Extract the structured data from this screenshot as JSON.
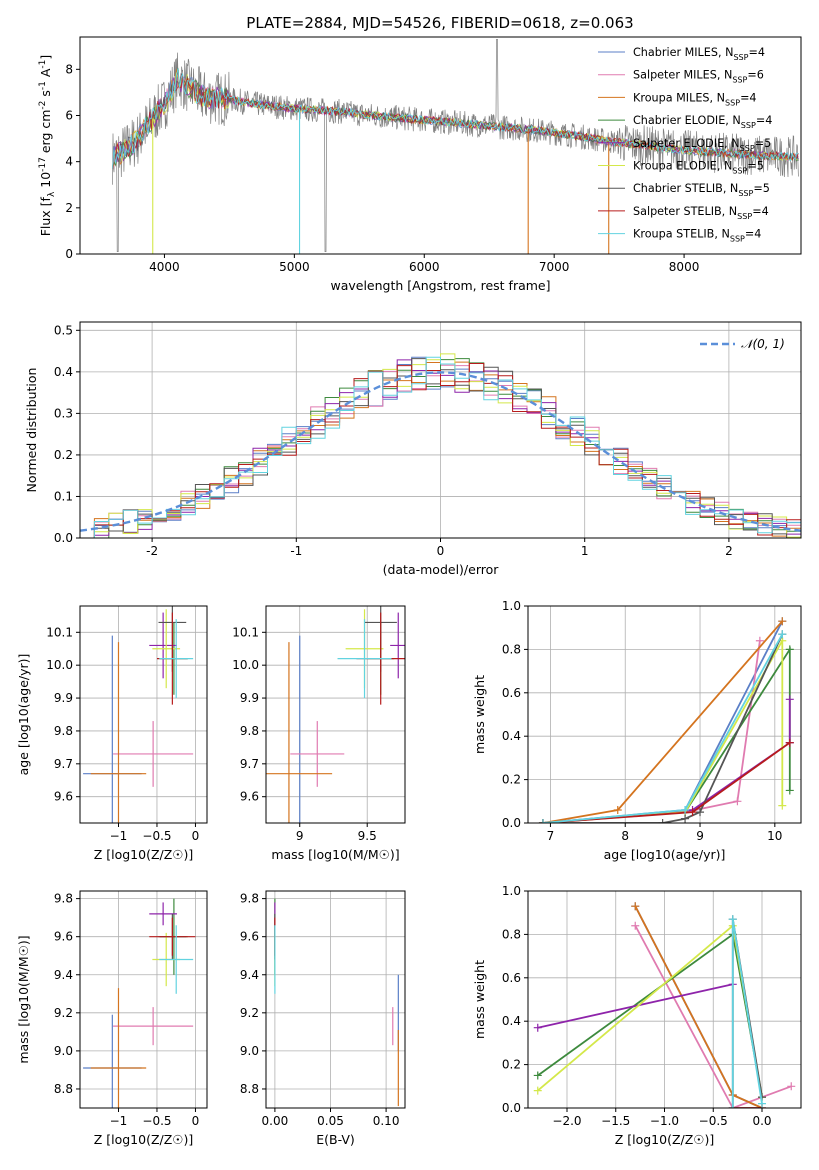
{
  "figure": {
    "title": "PLATE=2884, MJD=54526, FIBERID=0618, z=0.063"
  },
  "colors": {
    "chabrier_miles": "#5b7fc7",
    "salpeter_miles": "#e07bb0",
    "kroupa_miles": "#d4741f",
    "chabrier_elodie": "#3d8a3d",
    "salpeter_elodie": "#8e24aa",
    "kroupa_elodie": "#d4e84a",
    "chabrier_stelib": "#555555",
    "salpeter_stelib": "#b71c1c",
    "kroupa_stelib": "#62d3e0",
    "data_gray": "#7f7f7f",
    "normal_curve": "#5b8fd9"
  },
  "chart_data": [
    {
      "id": "spectrum",
      "type": "line",
      "xlabel": "wavelength [Angstrom, rest frame]",
      "ylabel": "Flux [f_λ 10^-17 erg cm^-2 s^-1 A^-1]",
      "xlim": [
        3350,
        8900
      ],
      "ylim": [
        0,
        9.4
      ],
      "xticks": [
        4000,
        5000,
        6000,
        7000,
        8000
      ],
      "yticks": [
        0,
        2,
        4,
        6,
        8
      ],
      "grid": false,
      "legend_position": "top-right",
      "legend": [
        "Chabrier MILES, N_SSP=4",
        "Salpeter MILES, N_SSP=6",
        "Kroupa MILES, N_SSP=4",
        "Chabrier ELODIE, N_SSP=4",
        "Salpeter ELODIE, N_SSP=5",
        "Kroupa ELODIE, N_SSP=5",
        "Chabrier STELIB, N_SSP=5",
        "Salpeter STELIB, N_SSP=4",
        "Kroupa STELIB, N_SSP=4"
      ],
      "model_trend": {
        "x": [
          3600,
          3700,
          3800,
          3900,
          4000,
          4100,
          4200,
          4300,
          4500,
          4700,
          5000,
          5300,
          5600,
          6000,
          6400,
          6800,
          7200,
          7400,
          8000,
          8500,
          8900
        ],
        "y": [
          4.2,
          4.5,
          5.0,
          5.8,
          6.5,
          7.6,
          7.2,
          6.8,
          6.7,
          6.5,
          6.3,
          6.2,
          6.0,
          5.8,
          5.6,
          5.4,
          5.1,
          4.9,
          4.5,
          4.3,
          4.2
        ]
      }
    },
    {
      "id": "residual_histogram",
      "type": "bar",
      "xlabel": "(data-model)/error",
      "ylabel": "Normed distribution",
      "xlim": [
        -2.5,
        2.5
      ],
      "ylim": [
        0,
        0.52
      ],
      "xticks": [
        -2,
        -1,
        0,
        1,
        2
      ],
      "yticks": [
        0.0,
        0.1,
        0.2,
        0.3,
        0.4,
        0.5
      ],
      "grid": true,
      "legend_position": "top-right",
      "legend": [
        "𝒩(0, 1)"
      ],
      "bin_width": 0.1,
      "bins_from": -2.5,
      "base_values": [
        0.025,
        0.028,
        0.032,
        0.036,
        0.041,
        0.046,
        0.052,
        0.058,
        0.064,
        0.071,
        0.079,
        0.087,
        0.096,
        0.105,
        0.115,
        0.125,
        0.136,
        0.147,
        0.158,
        0.171,
        0.184,
        0.197,
        0.21,
        0.224,
        0.238,
        0.252,
        0.266,
        0.28,
        0.294,
        0.308,
        0.321,
        0.334,
        0.346,
        0.357,
        0.367,
        0.376,
        0.384,
        0.391,
        0.396,
        0.399,
        0.4,
        0.399,
        0.396,
        0.391,
        0.384,
        0.376,
        0.367,
        0.357,
        0.346,
        0.334,
        0.321,
        0.308,
        0.294,
        0.28,
        0.266,
        0.252,
        0.238,
        0.224,
        0.21,
        0.197,
        0.184,
        0.171,
        0.158,
        0.147,
        0.136,
        0.125,
        0.115,
        0.105,
        0.096,
        0.087,
        0.079,
        0.071,
        0.064,
        0.058,
        0.052,
        0.046,
        0.041,
        0.036,
        0.032,
        0.028,
        0.025,
        0.022,
        0.02,
        0.018,
        0.016,
        0.014,
        0.013,
        0.012,
        0.011,
        0.01,
        0.009,
        0.008,
        0.007,
        0.006,
        0.005,
        0.004,
        0.004,
        0.003,
        0.003,
        0.002
      ],
      "normal_curve": {
        "mean": 0,
        "sigma": 1
      }
    },
    {
      "id": "age_vs_metallicity",
      "type": "scatter",
      "xlabel": "Z [log10(Z/Z☉)]",
      "ylabel": "age  [log10(age/yr)]",
      "xlim": [
        -1.5,
        0.15
      ],
      "ylim": [
        9.52,
        10.18
      ],
      "xticks": [
        -1,
        -0.5,
        0
      ],
      "xticklabels": [
        "−1",
        "−0.5",
        "0"
      ],
      "yticks": [
        9.6,
        9.7,
        9.8,
        9.9,
        10.0,
        10.1
      ],
      "grid": true,
      "points": [
        {
          "model": "chabrier_miles",
          "x": -1.08,
          "y": 9.67,
          "xerr": 0.38,
          "yerr": 0.42
        },
        {
          "model": "salpeter_miles",
          "x": -0.55,
          "y": 9.73,
          "xerr": 0.52,
          "yerr": 0.1
        },
        {
          "model": "kroupa_miles",
          "x": -1.0,
          "y": 9.67,
          "xerr": 0.36,
          "yerr": 0.4
        },
        {
          "model": "chabrier_elodie",
          "x": -0.28,
          "y": 10.02,
          "xerr": 0.18,
          "yerr": 0.11
        },
        {
          "model": "salpeter_elodie",
          "x": -0.42,
          "y": 10.06,
          "xerr": 0.18,
          "yerr": 0.1
        },
        {
          "model": "kroupa_elodie",
          "x": -0.38,
          "y": 10.05,
          "xerr": 0.18,
          "yerr": 0.12
        },
        {
          "model": "chabrier_stelib",
          "x": -0.3,
          "y": 10.13,
          "xerr": 0.18,
          "yerr": 0.15
        },
        {
          "model": "salpeter_stelib",
          "x": -0.3,
          "y": 10.02,
          "xerr": 0.2,
          "yerr": 0.14
        },
        {
          "model": "kroupa_stelib",
          "x": -0.25,
          "y": 10.02,
          "xerr": 0.22,
          "yerr": 0.12
        }
      ]
    },
    {
      "id": "age_vs_mass",
      "type": "scatter",
      "xlabel": "mass [log10(M/M☉)]",
      "ylabel": "",
      "xlim": [
        8.75,
        9.78
      ],
      "ylim": [
        9.52,
        10.18
      ],
      "xticks": [
        9.0,
        9.5
      ],
      "yticks": [
        9.6,
        9.7,
        9.8,
        9.9,
        10.0,
        10.1
      ],
      "grid": true,
      "points": [
        {
          "model": "chabrier_miles",
          "x": 9.0,
          "y": 9.67,
          "xerr": 0.0,
          "yerr": 0.42
        },
        {
          "model": "salpeter_miles",
          "x": 9.13,
          "y": 9.73,
          "xerr": 0.2,
          "yerr": 0.1
        },
        {
          "model": "kroupa_miles",
          "x": 8.92,
          "y": 9.67,
          "xerr": 0.32,
          "yerr": 0.4
        },
        {
          "model": "chabrier_elodie",
          "x": 9.6,
          "y": 10.02,
          "xerr": 0.1,
          "yerr": 0.11
        },
        {
          "model": "salpeter_elodie",
          "x": 9.73,
          "y": 10.06,
          "xerr": 0.06,
          "yerr": 0.1
        },
        {
          "model": "kroupa_elodie",
          "x": 9.48,
          "y": 10.05,
          "xerr": 0.14,
          "yerr": 0.12
        },
        {
          "model": "chabrier_stelib",
          "x": 9.6,
          "y": 10.13,
          "xerr": 0.12,
          "yerr": 0.15
        },
        {
          "model": "salpeter_stelib",
          "x": 9.6,
          "y": 10.02,
          "xerr": 0.18,
          "yerr": 0.14
        },
        {
          "model": "kroupa_stelib",
          "x": 9.48,
          "y": 10.02,
          "xerr": 0.2,
          "yerr": 0.12
        }
      ]
    },
    {
      "id": "mass_weight_vs_age",
      "type": "line",
      "xlabel": "age  [log10(age/yr)]",
      "ylabel": "mass weight",
      "xlim": [
        6.7,
        10.35
      ],
      "ylim": [
        0,
        1.0
      ],
      "xticks": [
        7,
        8,
        9,
        10
      ],
      "yticks": [
        0.0,
        0.2,
        0.4,
        0.6,
        0.8,
        1.0
      ],
      "grid": true,
      "series": [
        {
          "model": "chabrier_miles",
          "x": [
            6.9,
            8.8,
            10.1
          ],
          "y": [
            0.0,
            0.06,
            0.93
          ]
        },
        {
          "model": "salpeter_miles",
          "x": [
            6.9,
            8.8,
            9.5,
            9.8
          ],
          "y": [
            0.0,
            0.05,
            0.1,
            0.84
          ]
        },
        {
          "model": "kroupa_miles",
          "x": [
            6.9,
            7.9,
            10.1
          ],
          "y": [
            0.0,
            0.06,
            0.93
          ]
        },
        {
          "model": "chabrier_elodie",
          "x": [
            6.9,
            8.8,
            10.2,
            10.2
          ],
          "y": [
            0.0,
            0.05,
            0.8,
            0.15
          ]
        },
        {
          "model": "salpeter_elodie",
          "x": [
            6.9,
            8.9,
            10.2,
            10.2,
            10.2
          ],
          "y": [
            0.0,
            0.06,
            0.37,
            0.57,
            0.37
          ]
        },
        {
          "model": "kroupa_elodie",
          "x": [
            6.9,
            8.8,
            10.1,
            10.1
          ],
          "y": [
            0.0,
            0.05,
            0.84,
            0.08
          ]
        },
        {
          "model": "chabrier_stelib",
          "x": [
            6.9,
            8.5,
            8.8,
            9.0,
            10.1
          ],
          "y": [
            0.0,
            0.0,
            0.02,
            0.05,
            0.87
          ]
        },
        {
          "model": "salpeter_stelib",
          "x": [
            6.9,
            8.9,
            10.2
          ],
          "y": [
            0.0,
            0.05,
            0.37
          ]
        },
        {
          "model": "kroupa_stelib",
          "x": [
            6.9,
            8.8,
            10.1
          ],
          "y": [
            0.0,
            0.06,
            0.87
          ]
        }
      ]
    },
    {
      "id": "mass_vs_metallicity",
      "type": "scatter",
      "xlabel": "Z [log10(Z/Z☉)]",
      "ylabel": "mass [log10(M/M☉)]",
      "xlim": [
        -1.5,
        0.15
      ],
      "ylim": [
        8.7,
        9.84
      ],
      "xticks": [
        -1,
        -0.5,
        0
      ],
      "xticklabels": [
        "−1",
        "−0.5",
        "0"
      ],
      "yticks": [
        8.8,
        9.0,
        9.2,
        9.4,
        9.6,
        9.8
      ],
      "grid": true,
      "points": [
        {
          "model": "chabrier_miles",
          "x": -1.08,
          "y": 8.91,
          "xerr": 0.38,
          "yerr": 0.28
        },
        {
          "model": "salpeter_miles",
          "x": -0.55,
          "y": 9.13,
          "xerr": 0.52,
          "yerr": 0.1
        },
        {
          "model": "kroupa_miles",
          "x": -1.0,
          "y": 8.91,
          "xerr": 0.36,
          "yerr": 0.42
        },
        {
          "model": "chabrier_elodie",
          "x": -0.28,
          "y": 9.6,
          "xerr": 0.18,
          "yerr": 0.2
        },
        {
          "model": "salpeter_elodie",
          "x": -0.42,
          "y": 9.72,
          "xerr": 0.18,
          "yerr": 0.06
        },
        {
          "model": "kroupa_elodie",
          "x": -0.38,
          "y": 9.48,
          "xerr": 0.18,
          "yerr": 0.14
        },
        {
          "model": "chabrier_stelib",
          "x": -0.3,
          "y": 9.6,
          "xerr": 0.18,
          "yerr": 0.12
        },
        {
          "model": "salpeter_stelib",
          "x": -0.3,
          "y": 9.6,
          "xerr": 0.3,
          "yerr": 0.1
        },
        {
          "model": "kroupa_stelib",
          "x": -0.25,
          "y": 9.48,
          "xerr": 0.22,
          "yerr": 0.18
        }
      ]
    },
    {
      "id": "mass_vs_ebv",
      "type": "scatter",
      "xlabel": "E(B-V)",
      "ylabel": "",
      "xlim": [
        -0.008,
        0.117
      ],
      "ylim": [
        8.7,
        9.84
      ],
      "xticks": [
        0.0,
        0.05,
        0.1
      ],
      "xticklabels": [
        "0.00",
        "0.05",
        "0.10"
      ],
      "yticks": [
        8.8,
        9.0,
        9.2,
        9.4,
        9.6,
        9.8
      ],
      "grid": true,
      "points": [
        {
          "model": "chabrier_miles",
          "x": 0.111,
          "y": 9.2,
          "xerr": 0.0,
          "yerr": 0.2
        },
        {
          "model": "salpeter_miles",
          "x": 0.106,
          "y": 9.13,
          "xerr": 0.0,
          "yerr": 0.1
        },
        {
          "model": "kroupa_miles",
          "x": 0.111,
          "y": 8.91,
          "xerr": 0.0,
          "yerr": 0.2
        },
        {
          "model": "chabrier_elodie",
          "x": 0.0,
          "y": 9.6,
          "xerr": 0.0,
          "yerr": 0.2
        },
        {
          "model": "salpeter_elodie",
          "x": 0.0,
          "y": 9.72,
          "xerr": 0.0,
          "yerr": 0.06
        },
        {
          "model": "kroupa_elodie",
          "x": 0.0,
          "y": 9.48,
          "xerr": 0.0,
          "yerr": 0.14
        },
        {
          "model": "chabrier_stelib",
          "x": 0.0,
          "y": 9.6,
          "xerr": 0.0,
          "yerr": 0.12
        },
        {
          "model": "salpeter_stelib",
          "x": 0.0,
          "y": 9.6,
          "xerr": 0.0,
          "yerr": 0.1
        },
        {
          "model": "kroupa_stelib",
          "x": 0.0,
          "y": 9.48,
          "xerr": 0.0,
          "yerr": 0.18
        }
      ]
    },
    {
      "id": "mass_weight_vs_metallicity",
      "type": "line",
      "xlabel": "Z [log10(Z/Z☉)]",
      "ylabel": "mass weight",
      "xlim": [
        -2.4,
        0.4
      ],
      "ylim": [
        0,
        1.0
      ],
      "xticks": [
        -2.0,
        -1.5,
        -1.0,
        -0.5,
        0.0
      ],
      "xticklabels": [
        "−2.0",
        "−1.5",
        "−1.0",
        "−0.5",
        "0.0"
      ],
      "yticks": [
        0.0,
        0.2,
        0.4,
        0.6,
        0.8,
        1.0
      ],
      "grid": true,
      "series": [
        {
          "model": "chabrier_miles",
          "x": [
            -1.3,
            -0.3,
            0.0
          ],
          "y": [
            0.93,
            0.06,
            0.0
          ]
        },
        {
          "model": "salpeter_miles",
          "x": [
            -1.3,
            -0.3,
            0.3
          ],
          "y": [
            0.84,
            0.0,
            0.1
          ]
        },
        {
          "model": "kroupa_miles",
          "x": [
            -1.3,
            -0.3,
            0.0
          ],
          "y": [
            0.93,
            0.06,
            0.0
          ]
        },
        {
          "model": "chabrier_elodie",
          "x": [
            -2.3,
            -0.3,
            0.0
          ],
          "y": [
            0.15,
            0.8,
            0.05
          ]
        },
        {
          "model": "salpeter_elodie",
          "x": [
            -2.3,
            -0.3
          ],
          "y": [
            0.37,
            0.57
          ]
        },
        {
          "model": "kroupa_elodie",
          "x": [
            -2.3,
            -0.3,
            0.0
          ],
          "y": [
            0.08,
            0.84,
            0.05
          ]
        },
        {
          "model": "chabrier_stelib",
          "x": [
            -0.3,
            -0.3,
            0.0
          ],
          "y": [
            0.0,
            0.87,
            0.05
          ]
        },
        {
          "model": "salpeter_stelib",
          "x": [
            -0.3,
            0.0
          ],
          "y": [
            0.0,
            0.0
          ]
        },
        {
          "model": "kroupa_stelib",
          "x": [
            -0.3,
            -0.3,
            0.0
          ],
          "y": [
            0.0,
            0.87,
            0.02
          ]
        }
      ]
    }
  ]
}
